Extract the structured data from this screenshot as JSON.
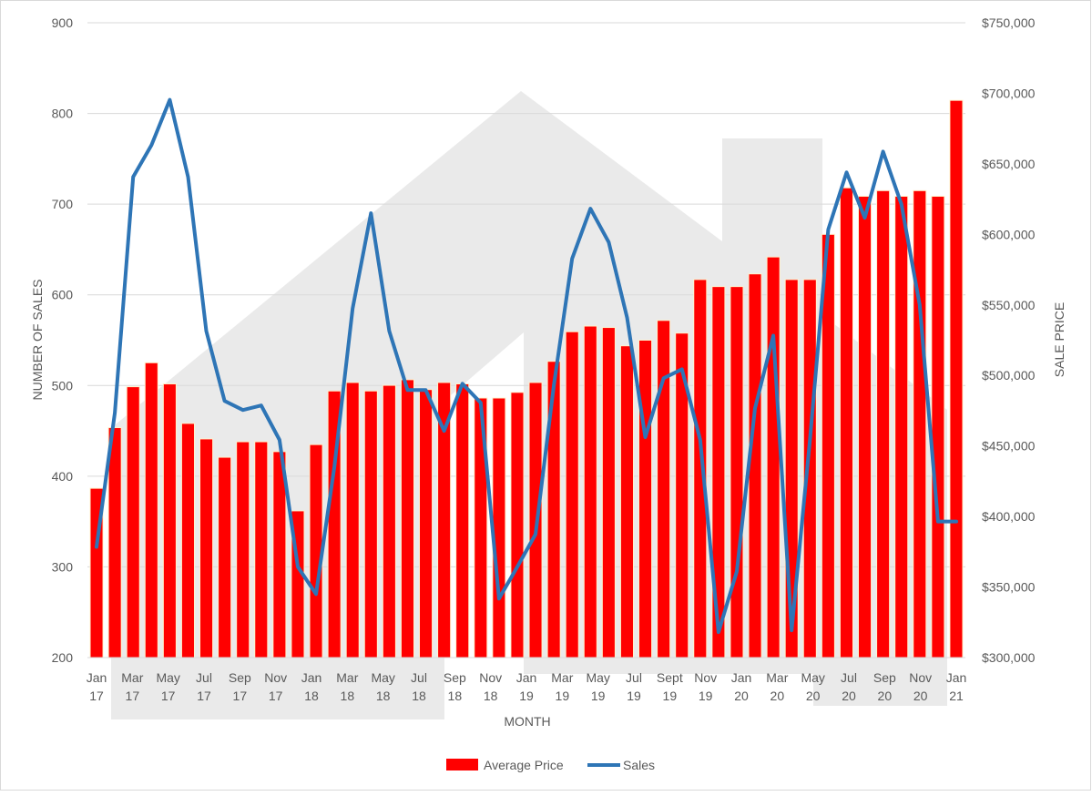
{
  "colors": {
    "bar_fill": "#ff0000",
    "bar_edge": "#fff2cc",
    "line": "#2e75b6",
    "grid": "#d9d9d9",
    "watermark": "#e6e6e6"
  },
  "chart_data": {
    "type": "bar",
    "title": "",
    "xlabel": "MONTH",
    "ylabel_left": "NUMBER OF SALES",
    "ylabel_right": "SALE PRICE",
    "left_ylim": [
      200,
      900
    ],
    "left_ticks": [
      "200",
      "300",
      "400",
      "500",
      "600",
      "700",
      "800",
      "900"
    ],
    "right_ylim": [
      300000,
      750000
    ],
    "right_ticks": [
      "$300,000",
      "$350,000",
      "$400,000",
      "$450,000",
      "$500,000",
      "$550,000",
      "$600,000",
      "$650,000",
      "$700,000",
      "$750,000"
    ],
    "grid": true,
    "legend_position": "bottom",
    "x_tick_labels": [
      {
        "month": "Jan",
        "year": "17"
      },
      {
        "month": "Mar",
        "year": "17"
      },
      {
        "month": "May",
        "year": "17"
      },
      {
        "month": "Jul",
        "year": "17"
      },
      {
        "month": "Sep",
        "year": "17"
      },
      {
        "month": "Nov",
        "year": "17"
      },
      {
        "month": "Jan",
        "year": "18"
      },
      {
        "month": "Mar",
        "year": "18"
      },
      {
        "month": "May",
        "year": "18"
      },
      {
        "month": "Jul",
        "year": "18"
      },
      {
        "month": "Sep",
        "year": "18"
      },
      {
        "month": "Nov",
        "year": "18"
      },
      {
        "month": "Jan",
        "year": "19"
      },
      {
        "month": "Mar",
        "year": "19"
      },
      {
        "month": "May",
        "year": "19"
      },
      {
        "month": "Jul",
        "year": "19"
      },
      {
        "month": "Sept",
        "year": "19"
      },
      {
        "month": "Nov",
        "year": "19"
      },
      {
        "month": "Jan",
        "year": "20"
      },
      {
        "month": "Mar",
        "year": "20"
      },
      {
        "month": "May",
        "year": "20"
      },
      {
        "month": "Jul",
        "year": "20"
      },
      {
        "month": "Sep",
        "year": "20"
      },
      {
        "month": "Nov",
        "year": "20"
      },
      {
        "month": "Jan",
        "year": "21"
      }
    ],
    "series": [
      {
        "name": "Average Price",
        "type": "bar",
        "axis": "right",
        "values": [
          420000,
          463000,
          492000,
          509000,
          494000,
          466000,
          455000,
          442000,
          453000,
          453000,
          446000,
          404000,
          451000,
          489000,
          495000,
          489000,
          493000,
          497000,
          490000,
          495000,
          494000,
          484000,
          484000,
          488000,
          495000,
          510000,
          531000,
          535000,
          534000,
          521000,
          525000,
          539000,
          530000,
          568000,
          563000,
          563000,
          572000,
          584000,
          568000,
          568000,
          600000,
          633000,
          627000,
          631000,
          627000,
          631000,
          627000,
          695000
        ]
      },
      {
        "name": "Sales",
        "type": "line",
        "axis": "left",
        "values": [
          322,
          470,
          730,
          765,
          815,
          730,
          560,
          483,
          473,
          478,
          440,
          300,
          270,
          410,
          585,
          690,
          560,
          495,
          495,
          450,
          502,
          481,
          265,
          300,
          336,
          500,
          640,
          695,
          658,
          575,
          443,
          508,
          518,
          440,
          228,
          295,
          475,
          555,
          230,
          440,
          672,
          735,
          685,
          758,
          700,
          589,
          350,
          350
        ]
      }
    ]
  }
}
